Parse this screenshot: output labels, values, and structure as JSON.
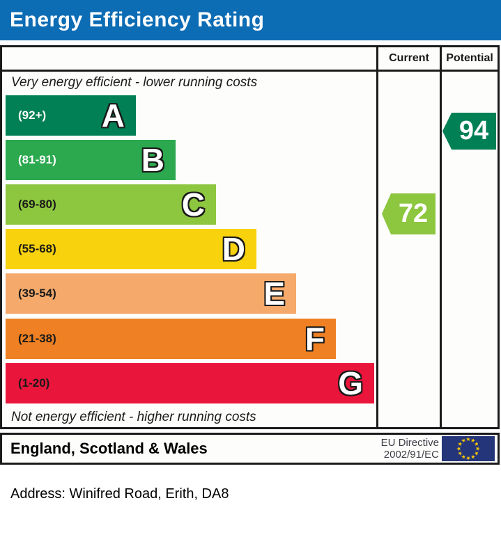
{
  "title": "Energy Efficiency Rating",
  "columns": {
    "current": "Current",
    "potential": "Potential"
  },
  "notes": {
    "top": "Very energy efficient - lower running costs",
    "bottom": "Not energy efficient - higher running costs"
  },
  "bands": [
    {
      "letter": "A",
      "range": "(92+)",
      "color": "#008054",
      "label_color": "#ffffff"
    },
    {
      "letter": "B",
      "range": "(81-91)",
      "color": "#2CA94F",
      "label_color": "#ffffff"
    },
    {
      "letter": "C",
      "range": "(69-80)",
      "color": "#8DC63F",
      "label_color": "#1a1a1a"
    },
    {
      "letter": "D",
      "range": "(55-68)",
      "color": "#F8D20C",
      "label_color": "#1a1a1a"
    },
    {
      "letter": "E",
      "range": "(39-54)",
      "color": "#F5A96B",
      "label_color": "#1a1a1a"
    },
    {
      "letter": "F",
      "range": "(21-38)",
      "color": "#EF8023",
      "label_color": "#1a1a1a"
    },
    {
      "letter": "G",
      "range": "(1-20)",
      "color": "#E9153B",
      "label_color": "#1a1a1a"
    }
  ],
  "current": {
    "value": "72",
    "color": "#8DC63F",
    "band": "C"
  },
  "potential": {
    "value": "94",
    "color": "#008054",
    "band": "A"
  },
  "footer": {
    "region": "England, Scotland & Wales",
    "directive_line1": "EU Directive",
    "directive_line2": "2002/91/EC"
  },
  "address": "Address: Winifred Road, Erith, DA8",
  "colors": {
    "title_bg": "#0C6CB4",
    "title_text": "#ffffff",
    "eu_flag_bg": "#25357A",
    "eu_star": "#FFCC00",
    "border": "#1a1a1a"
  },
  "chart_data": {
    "type": "bar",
    "title": "Energy Efficiency Rating",
    "orientation": "horizontal",
    "categories": [
      "A",
      "B",
      "C",
      "D",
      "E",
      "F",
      "G"
    ],
    "band_range_labels": [
      "(92+)",
      "(81-91)",
      "(69-80)",
      "(55-68)",
      "(39-54)",
      "(21-38)",
      "(1-20)"
    ],
    "band_ranges": [
      [
        92,
        100
      ],
      [
        81,
        91
      ],
      [
        69,
        80
      ],
      [
        55,
        68
      ],
      [
        39,
        54
      ],
      [
        21,
        38
      ],
      [
        1,
        20
      ]
    ],
    "band_colors": [
      "#008054",
      "#2CA94F",
      "#8DC63F",
      "#F8D20C",
      "#F5A96B",
      "#EF8023",
      "#E9153B"
    ],
    "bar_relative_widths": [
      0.35,
      0.46,
      0.57,
      0.68,
      0.79,
      0.9,
      1.0
    ],
    "series": [
      {
        "name": "Current",
        "value": 72,
        "band": "C",
        "color": "#8DC63F"
      },
      {
        "name": "Potential",
        "value": 94,
        "band": "A",
        "color": "#008054"
      }
    ],
    "top_annotation": "Very energy efficient - lower running costs",
    "bottom_annotation": "Not energy efficient - higher running costs",
    "footer_region": "England, Scotland & Wales",
    "footer_directive": "EU Directive 2002/91/EC",
    "scale": [
      1,
      100
    ],
    "legend_position": "none",
    "grid": false
  }
}
